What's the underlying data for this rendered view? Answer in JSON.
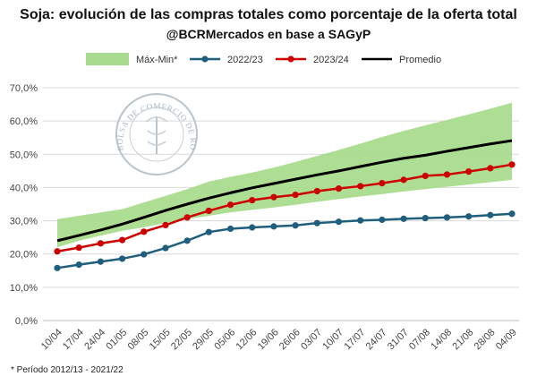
{
  "chart_data": {
    "type": "line",
    "title": "Soja: evolución de las compras totales como porcentaje de la oferta total",
    "subtitle": "@BCRMercados en base a SAGyP",
    "footnote": "* Período 2012/13 - 2021/22",
    "watermark_text": "BOLSA DE COMERCIO DE ROSARIO",
    "categories": [
      "10/04",
      "17/04",
      "24/04",
      "01/05",
      "08/05",
      "15/05",
      "22/05",
      "29/05",
      "05/06",
      "12/06",
      "19/06",
      "26/06",
      "03/07",
      "10/07",
      "17/07",
      "24/07",
      "31/07",
      "07/08",
      "14/08",
      "21/08",
      "28/08",
      "04/09"
    ],
    "y_ticks": [
      "0,0%",
      "10,0%",
      "20,0%",
      "30,0%",
      "40,0%",
      "50,0%",
      "60,0%",
      "70,0%"
    ],
    "ylim": [
      0,
      70
    ],
    "grid": true,
    "legend_position": "top",
    "band": {
      "name": "Máx-Min*",
      "color": "#a9dc8e",
      "max": [
        30.5,
        31.5,
        32.5,
        33.5,
        35.5,
        37.5,
        39.5,
        41.8,
        43.2,
        44.5,
        46.0,
        47.7,
        49.5,
        51.3,
        53.2,
        55.2,
        57.0,
        58.7,
        60.3,
        62.0,
        63.7,
        65.5
      ],
      "min": [
        22.0,
        24.0,
        25.5,
        27.0,
        28.0,
        29.3,
        30.5,
        31.5,
        32.5,
        33.3,
        34.0,
        34.8,
        35.7,
        36.5,
        37.3,
        38.0,
        38.8,
        39.5,
        40.2,
        40.9,
        41.6,
        42.3
      ]
    },
    "series": [
      {
        "name": "2022/23",
        "color": "#1f5f7d",
        "marker": true,
        "values": [
          15.8,
          16.8,
          17.7,
          18.6,
          19.9,
          21.8,
          24.0,
          26.6,
          27.6,
          28.0,
          28.3,
          28.6,
          29.3,
          29.7,
          30.1,
          30.3,
          30.6,
          30.8,
          31.0,
          31.3,
          31.7,
          32.1
        ]
      },
      {
        "name": "2023/24",
        "color": "#cc0000",
        "marker": true,
        "values": [
          20.8,
          21.9,
          23.2,
          24.2,
          26.7,
          28.7,
          31.0,
          33.0,
          34.8,
          36.2,
          37.1,
          37.8,
          38.9,
          39.7,
          40.4,
          41.3,
          42.3,
          43.5,
          43.9,
          44.8,
          45.8,
          46.9
        ]
      },
      {
        "name": "Promedio",
        "color": "#000000",
        "marker": false,
        "values": [
          24.0,
          25.6,
          27.2,
          29.0,
          31.0,
          33.1,
          35.0,
          36.8,
          38.4,
          39.9,
          41.2,
          42.5,
          43.8,
          45.0,
          46.3,
          47.6,
          48.8,
          49.7,
          50.9,
          52.0,
          53.1,
          54.1
        ]
      }
    ]
  }
}
